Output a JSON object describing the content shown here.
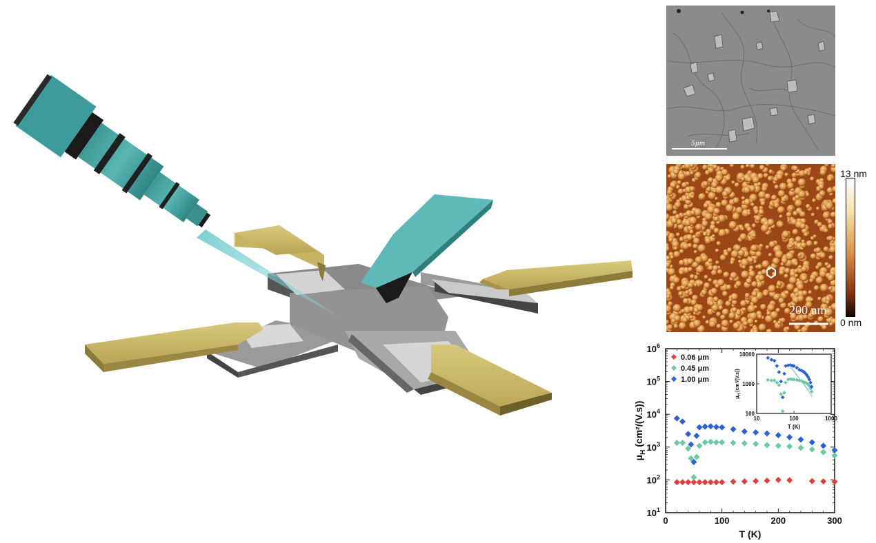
{
  "sem": {
    "scale_label": "5μm"
  },
  "afm": {
    "scale_label": "200 nm",
    "colorbar_max": "13 nm",
    "colorbar_min": "0 nm"
  },
  "chart_data": {
    "type": "scatter",
    "xlabel": "T (K)",
    "ylabel_main": "μ",
    "ylabel_sub": "H",
    "ylabel_unit": " (cm²/(V.s))",
    "yscale": "log",
    "xlim": [
      0,
      300
    ],
    "ylim": [
      10,
      1000000
    ],
    "xticks": [
      "0",
      "100",
      "200",
      "300"
    ],
    "yticks": [
      {
        "base": "10",
        "exp": "1"
      },
      {
        "base": "10",
        "exp": "2"
      },
      {
        "base": "10",
        "exp": "3"
      },
      {
        "base": "10",
        "exp": "4"
      },
      {
        "base": "10",
        "exp": "5"
      },
      {
        "base": "10",
        "exp": "6"
      }
    ],
    "legend_position": "top-left",
    "series": [
      {
        "name": "0.06 μm",
        "color": "#e0403c",
        "x": [
          20,
          30,
          40,
          50,
          60,
          70,
          80,
          90,
          100,
          120,
          140,
          160,
          180,
          200,
          220,
          260,
          280,
          300
        ],
        "y": [
          85,
          85,
          85,
          85,
          85,
          85,
          85,
          85,
          85,
          88,
          90,
          92,
          95,
          100,
          98,
          92,
          90,
          88
        ]
      },
      {
        "name": "0.45 μm",
        "color": "#6cc9a4",
        "x": [
          20,
          30,
          40,
          45,
          50,
          55,
          60,
          70,
          80,
          90,
          100,
          120,
          140,
          160,
          180,
          200,
          220,
          240,
          260,
          280,
          300
        ],
        "y": [
          1350,
          1350,
          900,
          450,
          120,
          500,
          1100,
          1400,
          1450,
          1400,
          1400,
          1350,
          1300,
          1250,
          1150,
          1100,
          1050,
          950,
          850,
          700,
          550
        ]
      },
      {
        "name": "1.00 μm",
        "color": "#2a62d6",
        "x": [
          20,
          30,
          40,
          45,
          50,
          55,
          60,
          70,
          80,
          90,
          100,
          120,
          140,
          160,
          180,
          200,
          220,
          240,
          260,
          280,
          300
        ],
        "y": [
          7500,
          6000,
          2500,
          1200,
          350,
          2200,
          4000,
          4200,
          4300,
          4100,
          4000,
          3500,
          3000,
          2800,
          2600,
          2300,
          2000,
          1700,
          1400,
          1100,
          800
        ]
      }
    ],
    "inset": {
      "xlabel": "T (K)",
      "ylabel_main": "μ",
      "ylabel_sub": "H",
      "ylabel_unit": " (cm²/(V.s))",
      "xscale": "log",
      "yscale": "log",
      "xlim": [
        10,
        1000
      ],
      "ylim": [
        100,
        10000
      ],
      "xticks": [
        "10",
        "100",
        "1000"
      ],
      "yticks": [
        "100",
        "1000",
        "10000"
      ],
      "series": [
        {
          "name": "0.45 μm",
          "color": "#6cc9a4",
          "x": [
            20,
            25,
            30,
            35,
            40,
            45,
            50,
            55,
            60,
            70,
            80,
            90,
            100,
            120,
            140,
            160,
            180,
            200,
            220,
            240,
            260,
            280,
            300
          ],
          "y": [
            1350,
            1300,
            1300,
            1100,
            900,
            450,
            120,
            500,
            1100,
            1400,
            1450,
            1400,
            1400,
            1350,
            1300,
            1250,
            1150,
            1100,
            1050,
            950,
            850,
            700,
            550
          ]
        },
        {
          "name": "1.00 μm",
          "color": "#2a62d6",
          "x": [
            20,
            25,
            30,
            35,
            40,
            45,
            50,
            55,
            60,
            70,
            80,
            90,
            100,
            120,
            140,
            160,
            180,
            200,
            220,
            240,
            260,
            280,
            300
          ],
          "y": [
            7500,
            6500,
            6000,
            4000,
            2500,
            1200,
            350,
            2200,
            4000,
            4200,
            4300,
            4100,
            4000,
            3500,
            3000,
            2800,
            2600,
            2300,
            2000,
            1700,
            1400,
            1100,
            800
          ]
        }
      ]
    }
  }
}
